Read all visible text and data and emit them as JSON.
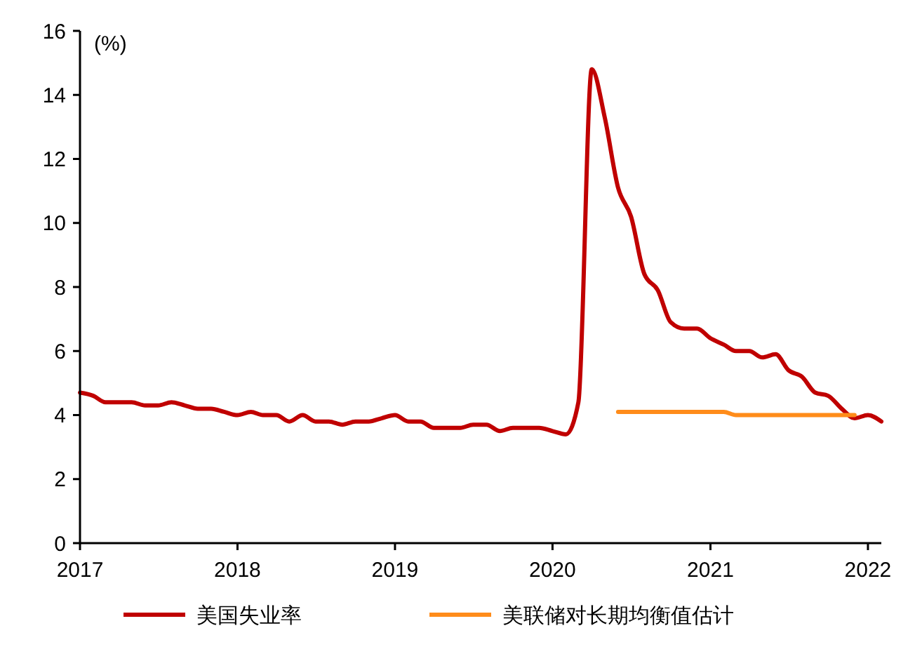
{
  "chart_data": {
    "type": "line",
    "annotations": [
      "(%)"
    ],
    "series": [
      {
        "name": "美国失业率",
        "color": "#c00000",
        "x": [
          "2017-01",
          "2017-02",
          "2017-03",
          "2017-04",
          "2017-05",
          "2017-06",
          "2017-07",
          "2017-08",
          "2017-09",
          "2017-10",
          "2017-11",
          "2017-12",
          "2018-01",
          "2018-02",
          "2018-03",
          "2018-04",
          "2018-05",
          "2018-06",
          "2018-07",
          "2018-08",
          "2018-09",
          "2018-10",
          "2018-11",
          "2018-12",
          "2019-01",
          "2019-02",
          "2019-03",
          "2019-04",
          "2019-05",
          "2019-06",
          "2019-07",
          "2019-08",
          "2019-09",
          "2019-10",
          "2019-11",
          "2019-12",
          "2020-01",
          "2020-02",
          "2020-03",
          "2020-04",
          "2020-05",
          "2020-06",
          "2020-07",
          "2020-08",
          "2020-09",
          "2020-10",
          "2020-11",
          "2020-12",
          "2021-01",
          "2021-02",
          "2021-03",
          "2021-04",
          "2021-05",
          "2021-06",
          "2021-07",
          "2021-08",
          "2021-09",
          "2021-10",
          "2021-11",
          "2021-12",
          "2022-01",
          "2022-02"
        ],
        "values": [
          4.7,
          4.6,
          4.4,
          4.4,
          4.4,
          4.3,
          4.3,
          4.4,
          4.3,
          4.2,
          4.2,
          4.1,
          4.0,
          4.1,
          4.0,
          4.0,
          3.8,
          4.0,
          3.8,
          3.8,
          3.7,
          3.8,
          3.8,
          3.9,
          4.0,
          3.8,
          3.8,
          3.6,
          3.6,
          3.6,
          3.7,
          3.7,
          3.5,
          3.6,
          3.6,
          3.6,
          3.5,
          3.4,
          4.4,
          14.8,
          13.3,
          11.1,
          10.2,
          8.4,
          7.9,
          6.9,
          6.7,
          6.7,
          6.4,
          6.2,
          6.0,
          6.0,
          5.8,
          5.9,
          5.4,
          5.2,
          4.7,
          4.6,
          4.2,
          3.9,
          4.0,
          3.8
        ]
      },
      {
        "name": "美联储对长期均衡值估计",
        "color": "#ff8c1a",
        "x": [
          "2020-06",
          "2020-09",
          "2020-12",
          "2021-02",
          "2021-03",
          "2021-06",
          "2021-09",
          "2021-12"
        ],
        "values": [
          4.1,
          4.1,
          4.1,
          4.1,
          4.0,
          4.0,
          4.0,
          4.0
        ]
      }
    ],
    "xlim": [
      "2017-01",
      "2022-02"
    ],
    "xticks": [
      {
        "value": "2017-01",
        "label": "2017"
      },
      {
        "value": "2018-01",
        "label": "2018"
      },
      {
        "value": "2019-01",
        "label": "2019"
      },
      {
        "value": "2020-01",
        "label": "2020"
      },
      {
        "value": "2021-01",
        "label": "2021"
      },
      {
        "value": "2022-01",
        "label": "2022"
      }
    ],
    "ylim": [
      0,
      16
    ],
    "yticks": [
      0,
      2,
      4,
      6,
      8,
      10,
      12,
      14,
      16
    ],
    "grid": false,
    "legend": "bottom",
    "marker": "none",
    "line_style": "solid"
  }
}
